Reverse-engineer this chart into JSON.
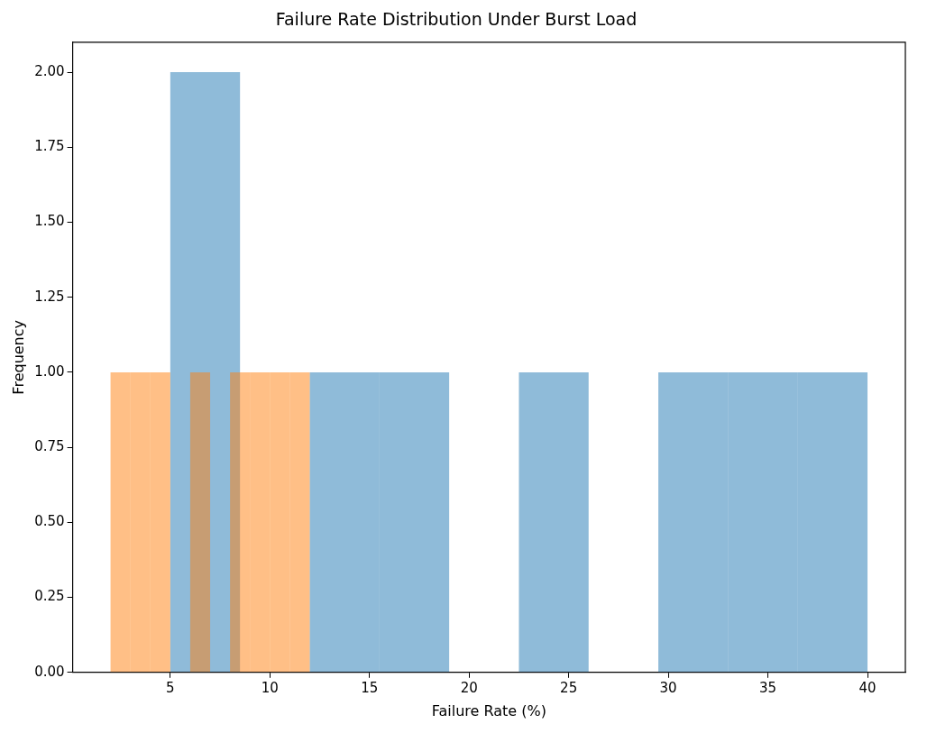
{
  "chart_data": {
    "type": "histogram",
    "title": "Failure Rate Distribution Under Burst Load",
    "xlabel": "Failure Rate (%)",
    "ylabel": "Frequency",
    "series": [
      {
        "color": "#1f77b4",
        "values": [
          2,
          0,
          1,
          1,
          0,
          1,
          0,
          1,
          1,
          1
        ]
      },
      {
        "color": "#ff7f0e",
        "bins": [
          2,
          3,
          4,
          5,
          6,
          7,
          8,
          9,
          10,
          11,
          12
        ],
        "values": [
          1,
          1,
          1,
          0,
          1,
          0,
          1,
          1,
          1,
          1
        ]
      }
    ],
    "bins": [
      5,
      8.5,
      12,
      15.5,
      19,
      22.5,
      26,
      29.5,
      33,
      36.5,
      40
    ],
    "xlim": [
      0.1,
      41.9
    ],
    "xticks": [
      5,
      10,
      15,
      20,
      25,
      30,
      35,
      40
    ],
    "ylim": [
      0,
      2.1
    ],
    "yticks": [
      {
        "value": 0,
        "label": "0.00"
      },
      {
        "value": 0.25,
        "label": "0.25"
      },
      {
        "value": 0.5,
        "label": "0.50"
      },
      {
        "value": 0.75,
        "label": "0.75"
      },
      {
        "value": 1,
        "label": "1.00"
      },
      {
        "value": 1.25,
        "label": "1.25"
      },
      {
        "value": 1.5,
        "label": "1.50"
      },
      {
        "value": 1.75,
        "label": "1.75"
      },
      {
        "value": 2,
        "label": "2.00"
      }
    ],
    "grid": false,
    "legend": false
  }
}
